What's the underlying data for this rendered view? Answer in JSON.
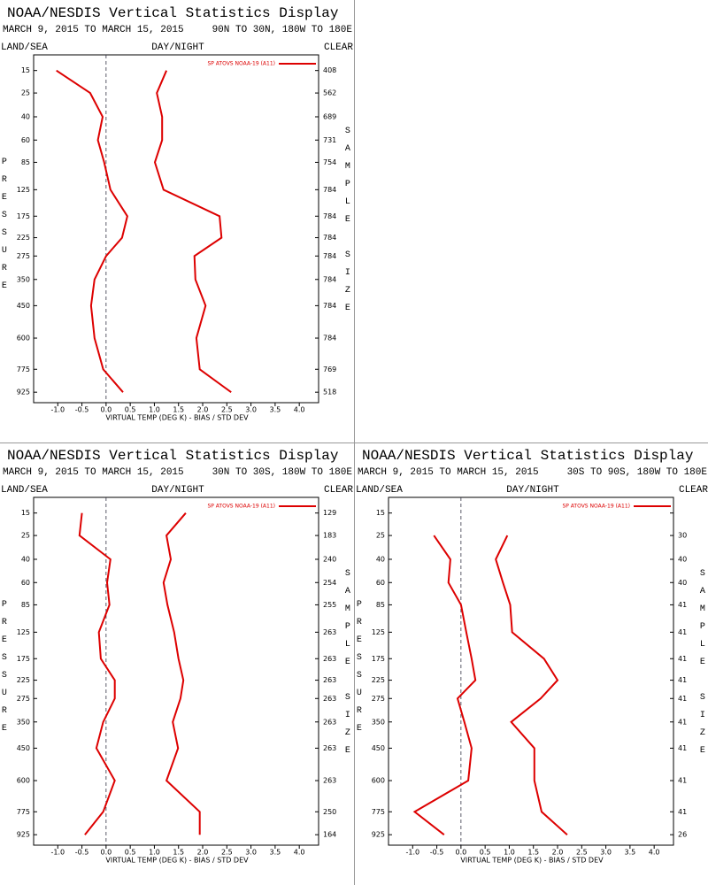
{
  "chart_data": [
    {
      "type": "line",
      "title": "NOAA/NESDIS Vertical Statistics Display",
      "subtitle": "MARCH 9, 2015 TO MARCH 15, 2015",
      "region": "90N TO 30N, 180W TO 180E",
      "land_sea": "LAND/SEA",
      "day_night": "DAY/NIGHT",
      "clear": "CLEAR",
      "y_label": "PRESSURE",
      "y2_label": "SAMPLE SIZE",
      "x_label": "VIRTUAL TEMP (DEG K) - BIAS / STD DEV",
      "y": [
        15,
        25,
        40,
        60,
        85,
        125,
        175,
        225,
        275,
        350,
        450,
        600,
        775,
        925
      ],
      "ylim": [
        10,
        1000
      ],
      "xlim": [
        -1.5,
        4.4
      ],
      "xticks": [
        {
          "value": -1,
          "label": "-1.0"
        },
        -0.5,
        {
          "value": 0,
          "label": "0.0"
        },
        0.5,
        {
          "value": 1,
          "label": "1.0"
        },
        1.5,
        {
          "value": 2,
          "label": "2.0"
        },
        2.5,
        {
          "value": 3,
          "label": "3.0"
        },
        3.5,
        {
          "value": 4,
          "label": "4.0"
        }
      ],
      "sample_size": [
        408,
        562,
        689,
        731,
        754,
        784,
        784,
        784,
        784,
        784,
        784,
        784,
        769,
        518
      ],
      "series": [
        {
          "name": "SP ATOVS NOAA-19 (A11)",
          "color": "#dd0000",
          "values": [
            -1.03,
            -0.33,
            -0.07,
            -0.17,
            -0.04,
            0.09,
            0.44,
            0.33,
            0.0,
            -0.24,
            -0.31,
            -0.24,
            -0.06,
            0.35
          ],
          "std_dev": [
            1.25,
            1.05,
            1.16,
            1.16,
            1.01,
            1.19,
            2.35,
            2.39,
            1.83,
            1.85,
            2.06,
            1.87,
            1.94,
            2.59
          ]
        }
      ]
    },
    {
      "type": "line",
      "title": "NOAA/NESDIS Vertical Statistics Display",
      "subtitle": "MARCH 9, 2015 TO MARCH 15, 2015",
      "region": "30N TO 30S, 180W TO 180E",
      "land_sea": "LAND/SEA",
      "day_night": "DAY/NIGHT",
      "clear": "CLEAR",
      "y_label": "PRESSURE",
      "y2_label": "SAMPLE SIZE",
      "x_label": "VIRTUAL TEMP (DEG K) - BIAS / STD DEV",
      "y": [
        15,
        25,
        40,
        60,
        85,
        125,
        175,
        225,
        275,
        350,
        450,
        600,
        775,
        925
      ],
      "ylim": [
        10,
        1000
      ],
      "xlim": [
        -1.5,
        4.4
      ],
      "xticks": [
        {
          "value": -1,
          "label": "-1.0"
        },
        -0.5,
        {
          "value": 0,
          "label": "0.0"
        },
        0.5,
        {
          "value": 1,
          "label": "1.0"
        },
        1.5,
        {
          "value": 2,
          "label": "2.0"
        },
        2.5,
        {
          "value": 3,
          "label": "3.0"
        },
        3.5,
        {
          "value": 4,
          "label": "4.0"
        }
      ],
      "sample_size": [
        129,
        183,
        240,
        254,
        255,
        263,
        263,
        263,
        263,
        263,
        263,
        263,
        250,
        164
      ],
      "series": [
        {
          "name": "SP ATOVS NOAA-19 (A11)",
          "color": "#dd0000",
          "values": [
            -0.5,
            -0.55,
            0.09,
            0.02,
            0.07,
            -0.15,
            -0.11,
            0.18,
            0.18,
            -0.06,
            -0.2,
            0.18,
            -0.06,
            -0.44
          ],
          "std_dev": [
            1.65,
            1.25,
            1.34,
            1.19,
            1.27,
            1.41,
            1.5,
            1.6,
            1.54,
            1.38,
            1.49,
            1.25,
            1.94,
            1.94
          ]
        }
      ]
    },
    {
      "type": "line",
      "title": "NOAA/NESDIS Vertical Statistics Display",
      "subtitle": "MARCH 9, 2015 TO MARCH 15, 2015",
      "region": "30S TO 90S, 180W TO 180E",
      "land_sea": "LAND/SEA",
      "day_night": "DAY/NIGHT",
      "clear": "CLEAR",
      "y_label": "PRESSURE",
      "y2_label": "SAMPLE SIZE",
      "x_label": "VIRTUAL TEMP (DEG K) - BIAS / STD DEV",
      "y": [
        15,
        25,
        40,
        60,
        85,
        125,
        175,
        225,
        275,
        350,
        450,
        600,
        775,
        925
      ],
      "ylim": [
        10,
        1000
      ],
      "xlim": [
        -1.5,
        4.4
      ],
      "xticks": [
        {
          "value": -1,
          "label": "-1.0"
        },
        -0.5,
        {
          "value": 0,
          "label": "0.0"
        },
        0.5,
        {
          "value": 1,
          "label": "1.0"
        },
        1.5,
        {
          "value": 2,
          "label": "2.0"
        },
        2.5,
        {
          "value": 3,
          "label": "3.0"
        },
        3.5,
        {
          "value": 4,
          "label": "4.0"
        }
      ],
      "sample_size": [
        null,
        30,
        40,
        40,
        41,
        41,
        41,
        41,
        41,
        41,
        41,
        41,
        41,
        26
      ],
      "series": [
        {
          "name": "SP ATOVS NOAA-19 (A11)",
          "color": "#dd0000",
          "values": [
            null,
            -0.56,
            -0.22,
            -0.26,
            0.0,
            0.11,
            0.22,
            0.3,
            -0.07,
            0.07,
            0.22,
            0.15,
            -0.96,
            -0.35
          ],
          "std_dev": [
            null,
            0.96,
            0.72,
            0.87,
            1.02,
            1.06,
            1.72,
            2.0,
            1.65,
            1.04,
            1.52,
            1.52,
            1.67,
            2.2
          ]
        }
      ]
    }
  ]
}
